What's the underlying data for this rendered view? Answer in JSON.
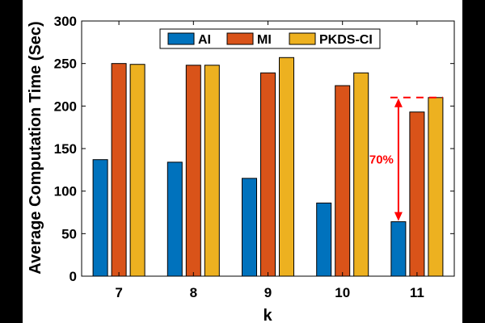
{
  "chart_data": {
    "type": "bar",
    "title": "",
    "xlabel": "k",
    "ylabel": "Average Computation Time (Sec)",
    "categories": [
      "7",
      "8",
      "9",
      "10",
      "11"
    ],
    "ylim": [
      0,
      300
    ],
    "yticks": [
      0,
      50,
      100,
      150,
      200,
      250,
      300
    ],
    "grid": false,
    "legend_position": "top-center",
    "series": [
      {
        "name": "AI",
        "color": "#0072BD",
        "values": [
          137,
          134,
          115,
          86,
          64
        ]
      },
      {
        "name": "MI",
        "color": "#D95319",
        "values": [
          250,
          248,
          239,
          224,
          193
        ]
      },
      {
        "name": "PKDS-CI",
        "color": "#EDB120",
        "values": [
          249,
          248,
          257,
          239,
          210
        ]
      }
    ],
    "annotation": {
      "text": "70%",
      "color": "#FF0000",
      "category": "11",
      "from_value": 64,
      "to_value": 210
    }
  }
}
